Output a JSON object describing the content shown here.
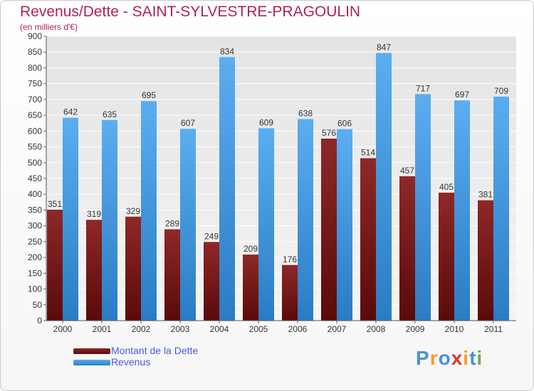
{
  "chart_data": {
    "type": "bar",
    "title": "Revenus/Dette - SAINT-SYLVESTRE-PRAGOULIN",
    "subtitle": "(en milliers d'€)",
    "categories": [
      "2000",
      "2001",
      "2002",
      "2003",
      "2004",
      "2005",
      "2006",
      "2007",
      "2008",
      "2009",
      "2010",
      "2011"
    ],
    "series": [
      {
        "name": "Montant de la Dette",
        "color": "#7a1a1a",
        "values": [
          351,
          319,
          329,
          289,
          249,
          209,
          176,
          576,
          514,
          457,
          405,
          381
        ]
      },
      {
        "name": "Revenus",
        "color": "#3d96dc",
        "values": [
          642,
          635,
          695,
          607,
          834,
          609,
          638,
          606,
          847,
          717,
          697,
          709
        ]
      }
    ],
    "ylim": [
      0,
      900
    ],
    "yticks": [
      0,
      50,
      100,
      150,
      200,
      250,
      300,
      350,
      400,
      450,
      500,
      550,
      600,
      650,
      700,
      750,
      800,
      850,
      900
    ],
    "grid": true,
    "legend_position": "bottom-left"
  },
  "logo": {
    "letters": [
      "P",
      "r",
      "o",
      "x",
      "i",
      "t",
      "i"
    ],
    "colors": [
      "#4a90d9",
      "#f0a020",
      "#4a90d9",
      "#d43a2a",
      "#f0a020",
      "#4a90d9",
      "#6ab04c"
    ]
  }
}
